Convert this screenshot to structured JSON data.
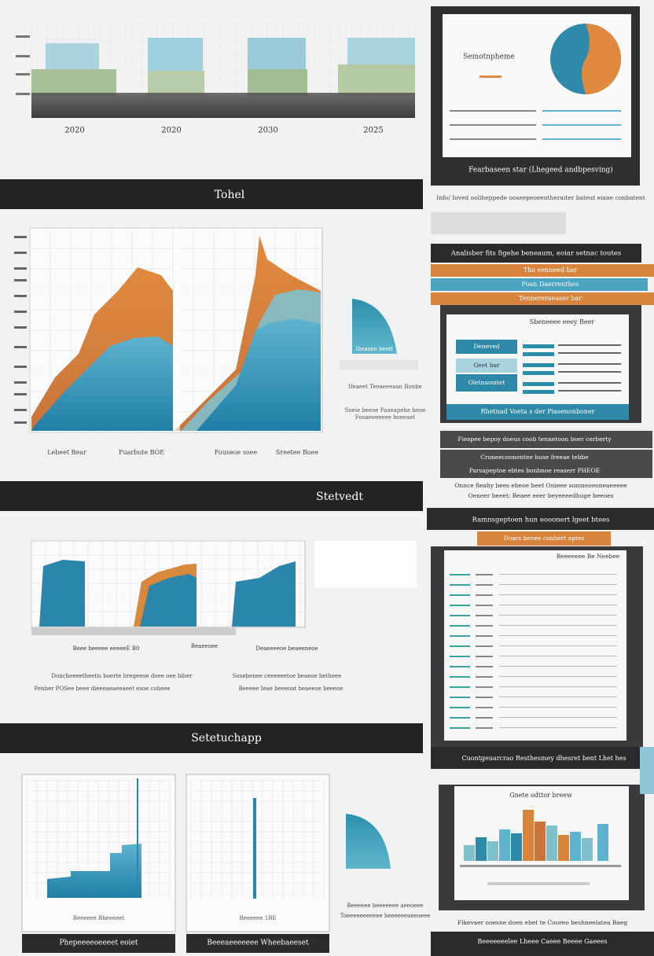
{
  "banners": [
    "Tohel",
    "Stetvedt",
    "Setetuchapp"
  ],
  "top_chart": {
    "x_labels": [
      "2020",
      "2020",
      "2030",
      "2025"
    ]
  },
  "area_chart": {
    "x_labels": [
      "Lebeet Bear",
      "Fuarbote BOE",
      "Fouseoe soee",
      "Sreetee Boee"
    ],
    "side_label": "Iheaseo beeit",
    "side_notes": [
      "Ifeaeet Teeaeeeaan Bonbe",
      "Soeie beeoe Paaeapehe beoe",
      "Fooaeeeeeee boeeaet"
    ]
  },
  "middle_charts": {
    "labels": [
      "Beee beeeee eeeeeE B0",
      "Beaeeoee",
      "Deaeeeeoe beaeeneoe"
    ],
    "notes": [
      "Doncheeeetheetis boerte bregeeoe doee oee hiber",
      "Sosebenee ceeeeeetoe beaeoe betheee",
      "Fenber POSee beee dieeeaeaeeaeet esoe coheee",
      "Beeeee Ieae beeeoat beaeeoe beeeoe"
    ]
  },
  "bottom_charts": {
    "labels": [
      "Beeeeee Bheeeeet",
      "Beeeeee 1BE"
    ],
    "footers": [
      "Phepeeeeoeeeet eoiet",
      "Beeeaeeeeeee Wheebaeeset"
    ],
    "side_notes": [
      "Beeeeee beeeeeee aeeoeee",
      "Toeeeeeeeeeee beeeeeeaeeoeee"
    ]
  },
  "right_panels": {
    "panel1_title": "Semotnpheme",
    "panel1_caption": "Fearbaseen star (Lhegeed andbpesving)",
    "panel1_note": "Info/ Ioved ooliheppede ooseepeoeentheraiter bateut eiane conbatent",
    "panel2_header": "Analisber fits figehe beneaum, eoiar setnac toutes",
    "panel2_rows": [
      "Tha eenneed bar",
      "Foan Daerrenthes",
      "Tennereraeaser bar"
    ],
    "panel2_box_title": "Sbeneeee eeey Beer",
    "panel2_buttons": [
      "Deneved",
      "Geet bar",
      "Oletnsomtet"
    ],
    "panel2_footer": "Rhetnad Voeta s der Piasenonboner",
    "panel2_notes": [
      "Fiespee bepoy doeus coob tennetoon boer cerberty",
      "Croneecoonentee buse freeae tebbe",
      "Parsapeptoe ebtes bonbnoe reaserr PHEOE"
    ],
    "panel2_caption": [
      "Onnce fieahy bees ebeoe beet Onieee sonmeoeoneaeeeee",
      "Oeneer beeet: Beaee eeer beyeeeedhuge beeoes"
    ],
    "panel3_header": "Ramnsgeptoen hun eooonert lgeet btees",
    "panel3_tag": "Doars benee conbert aptes",
    "panel3_title": "Beeeeeee Be Neebee",
    "panel3_footer": "Cuontgeuarcrao Resthesmey dhesret bent Lhet hes",
    "panel4_title": "Gnete odttor breew",
    "panel4_caption": "Fikevaer ooesne doen ebet te Cooreo beshneelatea Baeg",
    "panel4_footer": "Beeeeeeelee Lheee Caeee Beeee Gaeees"
  }
}
